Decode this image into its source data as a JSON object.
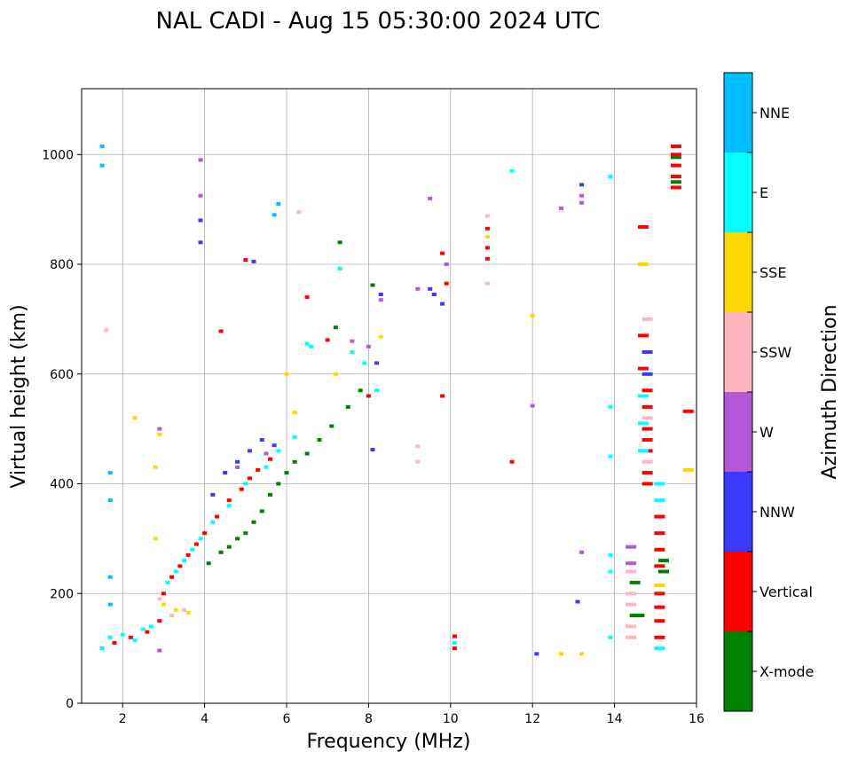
{
  "chart_data": {
    "type": "scatter",
    "title": "NAL CADI - Aug 15 05:30:00 2024 UTC",
    "xlabel": "Frequency (MHz)",
    "ylabel": "Virtual height (km)",
    "xlim": [
      1,
      16
    ],
    "ylim": [
      0,
      1120
    ],
    "xticks": [
      "2",
      "4",
      "6",
      "8",
      "10",
      "12",
      "14",
      "16"
    ],
    "yticks": [
      "0",
      "200",
      "400",
      "600",
      "800",
      "1000"
    ],
    "grid": true,
    "colorbar": {
      "label": "Azimuth Direction",
      "categories": [
        "X-mode",
        "Vertical",
        "NNW",
        "W",
        "SSW",
        "SSE",
        "E",
        "NNE"
      ],
      "colors": [
        "#008000",
        "#ff0000",
        "#3a3aff",
        "#b657d8",
        "#ffb6c1",
        "#ffd700",
        "#00ffff",
        "#00bfff"
      ]
    },
    "series": [
      {
        "name": "X-mode",
        "points": [
          [
            4.1,
            255
          ],
          [
            4.4,
            275
          ],
          [
            4.6,
            285
          ],
          [
            4.8,
            300
          ],
          [
            5.0,
            310
          ],
          [
            5.2,
            330
          ],
          [
            5.4,
            350
          ],
          [
            5.6,
            380
          ],
          [
            5.8,
            400
          ],
          [
            6.0,
            420
          ],
          [
            6.2,
            440
          ],
          [
            6.5,
            455
          ],
          [
            6.8,
            480
          ],
          [
            7.1,
            505
          ],
          [
            7.5,
            540
          ],
          [
            7.8,
            570
          ],
          [
            8.1,
            762
          ],
          [
            7.2,
            685
          ],
          [
            7.3,
            840
          ],
          [
            14.5,
            160
          ],
          [
            14.5,
            220
          ],
          [
            14.6,
            160
          ],
          [
            15.2,
            240
          ],
          [
            15.2,
            260
          ],
          [
            15.5,
            950
          ],
          [
            15.5,
            995
          ]
        ]
      },
      {
        "name": "Vertical",
        "points": [
          [
            1.5,
            100
          ],
          [
            1.8,
            110
          ],
          [
            2.2,
            120
          ],
          [
            2.6,
            130
          ],
          [
            2.9,
            150
          ],
          [
            3.0,
            200
          ],
          [
            3.2,
            230
          ],
          [
            3.4,
            250
          ],
          [
            3.6,
            270
          ],
          [
            3.8,
            290
          ],
          [
            4.0,
            310
          ],
          [
            4.3,
            340
          ],
          [
            4.6,
            370
          ],
          [
            4.9,
            390
          ],
          [
            5.1,
            410
          ],
          [
            5.3,
            425
          ],
          [
            5.6,
            445
          ],
          [
            4.4,
            678
          ],
          [
            5.0,
            808
          ],
          [
            6.5,
            740
          ],
          [
            7.0,
            662
          ],
          [
            8.0,
            560
          ],
          [
            9.8,
            560
          ],
          [
            9.8,
            820
          ],
          [
            9.9,
            765
          ],
          [
            10.1,
            100
          ],
          [
            10.1,
            122
          ],
          [
            10.9,
            830
          ],
          [
            10.9,
            810
          ],
          [
            10.9,
            865
          ],
          [
            11.5,
            440
          ],
          [
            14.7,
            868
          ],
          [
            14.7,
            610
          ],
          [
            14.7,
            670
          ],
          [
            14.8,
            400
          ],
          [
            14.8,
            420
          ],
          [
            14.8,
            460
          ],
          [
            14.8,
            480
          ],
          [
            14.8,
            500
          ],
          [
            14.8,
            540
          ],
          [
            14.8,
            570
          ],
          [
            15.1,
            120
          ],
          [
            15.1,
            150
          ],
          [
            15.1,
            175
          ],
          [
            15.1,
            200
          ],
          [
            15.1,
            250
          ],
          [
            15.1,
            280
          ],
          [
            15.1,
            310
          ],
          [
            15.1,
            340
          ],
          [
            15.5,
            940
          ],
          [
            15.5,
            960
          ],
          [
            15.5,
            980
          ],
          [
            15.5,
            1000
          ],
          [
            15.5,
            1015
          ],
          [
            15.8,
            532
          ]
        ]
      },
      {
        "name": "NNW",
        "points": [
          [
            3.9,
            840
          ],
          [
            3.9,
            880
          ],
          [
            4.2,
            380
          ],
          [
            4.5,
            420
          ],
          [
            4.8,
            440
          ],
          [
            5.1,
            460
          ],
          [
            5.4,
            480
          ],
          [
            5.7,
            470
          ],
          [
            5.2,
            805
          ],
          [
            8.1,
            462
          ],
          [
            8.2,
            620
          ],
          [
            8.3,
            745
          ],
          [
            9.5,
            755
          ],
          [
            9.6,
            745
          ],
          [
            9.8,
            728
          ],
          [
            12.1,
            90
          ],
          [
            13.1,
            185
          ],
          [
            13.2,
            945
          ],
          [
            14.8,
            600
          ],
          [
            14.8,
            640
          ]
        ]
      },
      {
        "name": "W",
        "points": [
          [
            2.9,
            500
          ],
          [
            2.9,
            96
          ],
          [
            3.9,
            925
          ],
          [
            3.9,
            990
          ],
          [
            4.8,
            430
          ],
          [
            5.5,
            455
          ],
          [
            7.6,
            660
          ],
          [
            8.0,
            650
          ],
          [
            8.3,
            735
          ],
          [
            9.2,
            755
          ],
          [
            9.5,
            920
          ],
          [
            9.9,
            800
          ],
          [
            12.0,
            542
          ],
          [
            12.7,
            902
          ],
          [
            13.2,
            912
          ],
          [
            13.2,
            925
          ],
          [
            13.2,
            275
          ],
          [
            14.4,
            255
          ],
          [
            14.4,
            285
          ]
        ]
      },
      {
        "name": "SSW",
        "points": [
          [
            1.6,
            680
          ],
          [
            2.9,
            190
          ],
          [
            3.2,
            160
          ],
          [
            3.5,
            170
          ],
          [
            6.3,
            895
          ],
          [
            9.2,
            440
          ],
          [
            9.2,
            468
          ],
          [
            10.9,
            765
          ],
          [
            10.9,
            888
          ],
          [
            14.4,
            120
          ],
          [
            14.4,
            140
          ],
          [
            14.4,
            180
          ],
          [
            14.4,
            200
          ],
          [
            14.4,
            240
          ],
          [
            14.8,
            700
          ],
          [
            14.8,
            520
          ],
          [
            14.8,
            440
          ]
        ]
      },
      {
        "name": "SSE",
        "points": [
          [
            2.3,
            520
          ],
          [
            2.8,
            430
          ],
          [
            2.8,
            300
          ],
          [
            2.9,
            490
          ],
          [
            3.0,
            180
          ],
          [
            3.3,
            170
          ],
          [
            3.6,
            165
          ],
          [
            6.0,
            600
          ],
          [
            6.2,
            530
          ],
          [
            7.2,
            600
          ],
          [
            8.3,
            668
          ],
          [
            10.9,
            850
          ],
          [
            12.0,
            706
          ],
          [
            12.7,
            90
          ],
          [
            13.2,
            90
          ],
          [
            14.7,
            800
          ],
          [
            15.1,
            215
          ],
          [
            15.8,
            425
          ]
        ]
      },
      {
        "name": "E",
        "points": [
          [
            1.5,
            100
          ],
          [
            1.7,
            120
          ],
          [
            2.0,
            125
          ],
          [
            2.3,
            115
          ],
          [
            2.5,
            135
          ],
          [
            2.7,
            140
          ],
          [
            3.1,
            220
          ],
          [
            3.3,
            240
          ],
          [
            3.5,
            260
          ],
          [
            3.7,
            280
          ],
          [
            3.9,
            300
          ],
          [
            4.2,
            330
          ],
          [
            4.6,
            360
          ],
          [
            5.0,
            400
          ],
          [
            5.5,
            430
          ],
          [
            5.8,
            460
          ],
          [
            6.2,
            485
          ],
          [
            6.5,
            655
          ],
          [
            6.6,
            650
          ],
          [
            7.3,
            792
          ],
          [
            7.6,
            640
          ],
          [
            7.9,
            620
          ],
          [
            8.2,
            570
          ],
          [
            13.9,
            960
          ],
          [
            13.9,
            540
          ],
          [
            13.9,
            450
          ],
          [
            13.9,
            270
          ],
          [
            13.9,
            240
          ],
          [
            13.9,
            120
          ],
          [
            11.5,
            970
          ],
          [
            10.1,
            110
          ],
          [
            14.7,
            560
          ],
          [
            14.7,
            510
          ],
          [
            14.7,
            460
          ],
          [
            15.1,
            100
          ],
          [
            15.1,
            370
          ],
          [
            15.1,
            400
          ]
        ]
      },
      {
        "name": "NNE",
        "points": [
          [
            1.5,
            1015
          ],
          [
            1.5,
            980
          ],
          [
            1.7,
            420
          ],
          [
            1.7,
            370
          ],
          [
            1.7,
            230
          ],
          [
            1.7,
            180
          ],
          [
            5.8,
            910
          ],
          [
            5.7,
            890
          ]
        ]
      }
    ]
  }
}
